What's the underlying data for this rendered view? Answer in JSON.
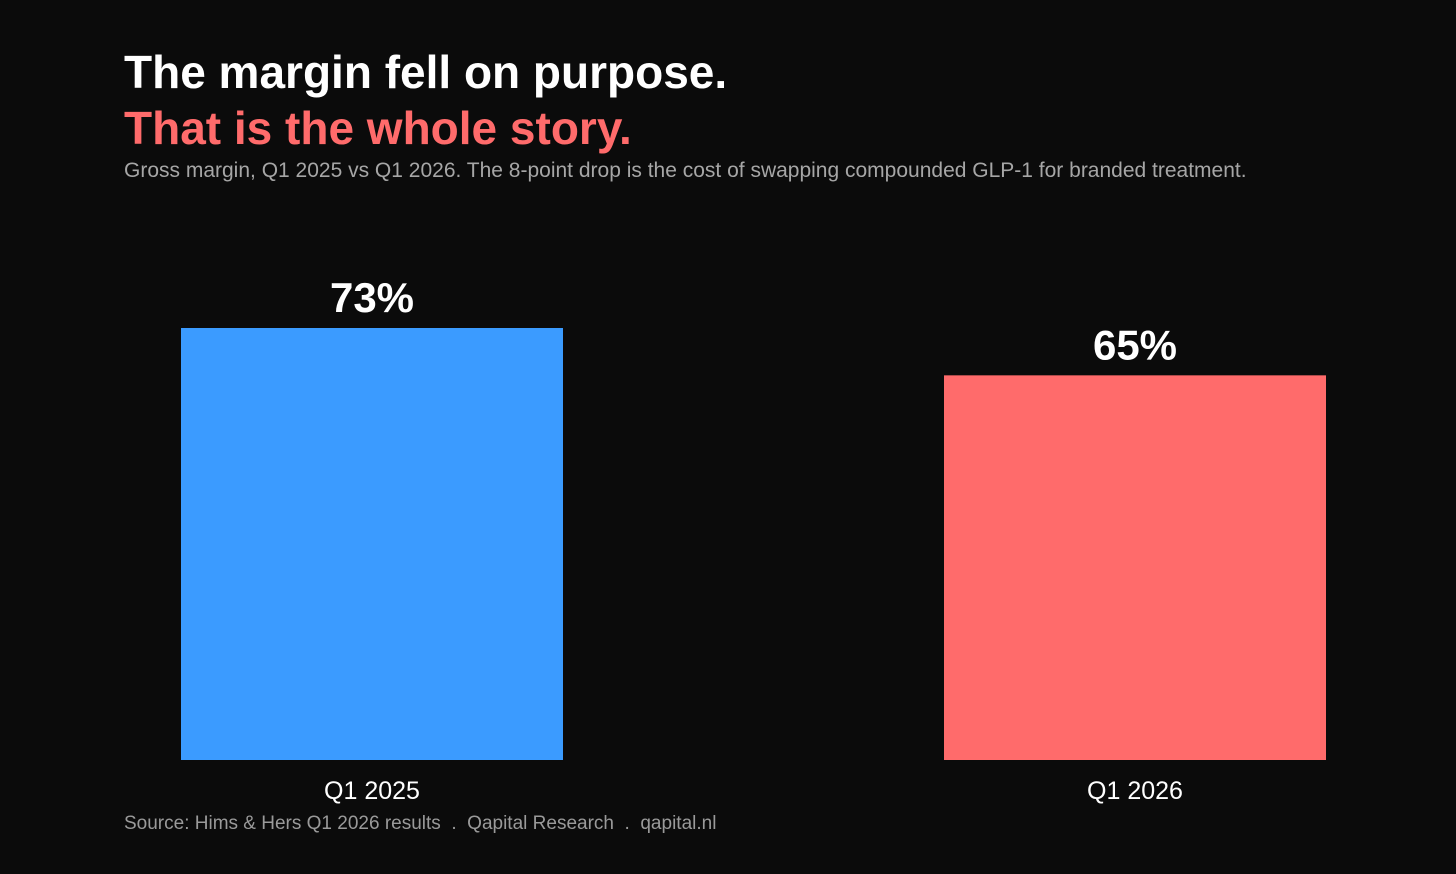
{
  "header": {
    "title": "The margin fell on purpose.",
    "subtitle": "That is the whole story.",
    "subtitle_color": "#ff6b6b",
    "description": "Gross margin, Q1 2025 vs Q1 2026. The 8-point drop is the cost of swapping compounded GLP-1 for branded treatment."
  },
  "chart_data": {
    "type": "bar",
    "categories": [
      "Q1 2025",
      "Q1 2026"
    ],
    "values": [
      73,
      65
    ],
    "value_labels": [
      "73%",
      "65%"
    ],
    "colors": [
      "#3b9bff",
      "#ff6b6b"
    ],
    "ylim": [
      0,
      73
    ],
    "grid": false,
    "background": "#0b0b0b"
  },
  "footer": {
    "source": "Source: Hims & Hers Q1 2026 results  .  Qapital Research  .  qapital.nl"
  }
}
